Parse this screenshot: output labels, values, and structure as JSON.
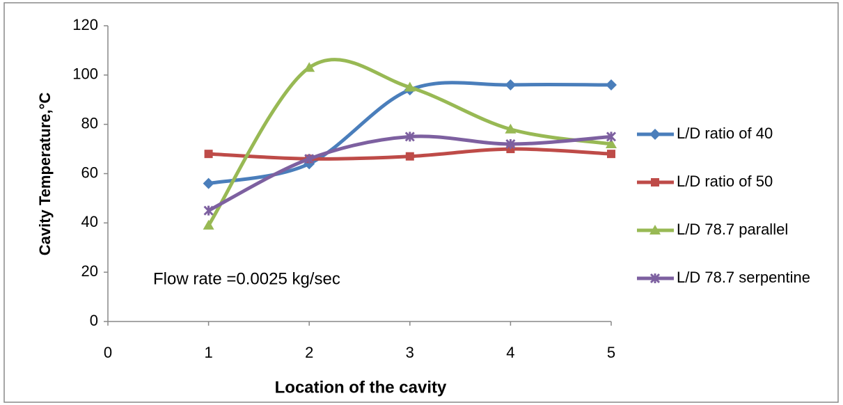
{
  "chart_data": {
    "type": "line",
    "xlabel": "Location of the cavity",
    "ylabel": "Cavity Temperature,°C",
    "annotation": "Flow rate =0.0025 kg/sec",
    "x": [
      1,
      2,
      3,
      4,
      5
    ],
    "xlim": [
      0,
      5
    ],
    "xticks": [
      0,
      1,
      2,
      3,
      4,
      5
    ],
    "ylim": [
      0,
      120
    ],
    "yticks": [
      0,
      20,
      40,
      60,
      80,
      100,
      120
    ],
    "smooth": true,
    "legend": "right",
    "series": [
      {
        "name": "L/D ratio of 40",
        "color": "#4a7ebb",
        "marker": "diamond",
        "values": [
          56,
          64,
          94,
          96,
          96
        ]
      },
      {
        "name": "L/D ratio of 50",
        "color": "#be4b48",
        "marker": "square",
        "values": [
          68,
          66,
          67,
          70,
          68
        ]
      },
      {
        "name": "L/D 78.7 parallel",
        "color": "#98b954",
        "marker": "triangle",
        "values": [
          39,
          103,
          95,
          78,
          72
        ]
      },
      {
        "name": "L/D 78.7 serpentine",
        "color": "#7d60a0",
        "marker": "star",
        "values": [
          45,
          66,
          75,
          72,
          75
        ]
      }
    ]
  }
}
